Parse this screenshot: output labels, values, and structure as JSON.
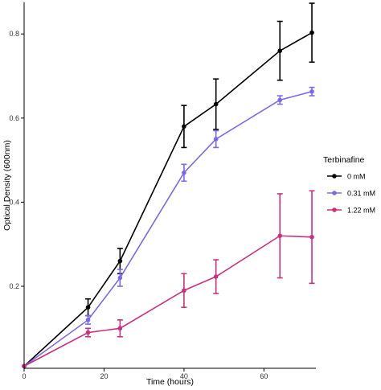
{
  "chart_data": {
    "type": "line",
    "title": "",
    "xlabel": "Time (hours)",
    "ylabel": "Optical Density (600nm)",
    "xlim": [
      0,
      73
    ],
    "ylim": [
      0.005,
      0.875
    ],
    "xticks": [
      0,
      20,
      40,
      60
    ],
    "xtick_labels": [
      "0",
      "20",
      "40",
      "60"
    ],
    "yticks": [
      0.2,
      0.4,
      0.6,
      0.8
    ],
    "ytick_labels": [
      "0.2",
      "0.4",
      "0.6",
      "0.8"
    ],
    "grid": false,
    "legend": {
      "title": "Terbinafine",
      "placement": "right"
    },
    "x": [
      0,
      16,
      24,
      40,
      48,
      64,
      72
    ],
    "series": [
      {
        "name": "0 mM",
        "color": "#000000",
        "values": [
          0.01,
          0.15,
          0.26,
          0.58,
          0.633,
          0.76,
          0.803
        ],
        "errors": [
          0,
          0.02,
          0.03,
          0.05,
          0.06,
          0.07,
          0.07
        ]
      },
      {
        "name": "0.31 mM",
        "color": "#7b68ee",
        "values": [
          0.01,
          0.12,
          0.22,
          0.47,
          0.55,
          0.643,
          0.663
        ],
        "errors": [
          0,
          0.01,
          0.02,
          0.02,
          0.02,
          0.01,
          0.01
        ]
      },
      {
        "name": "1.22 mM",
        "color": "#cc2f7e",
        "values": [
          0.01,
          0.09,
          0.1,
          0.19,
          0.223,
          0.32,
          0.317
        ],
        "errors": [
          0,
          0.01,
          0.02,
          0.04,
          0.04,
          0.1,
          0.11
        ]
      }
    ]
  }
}
